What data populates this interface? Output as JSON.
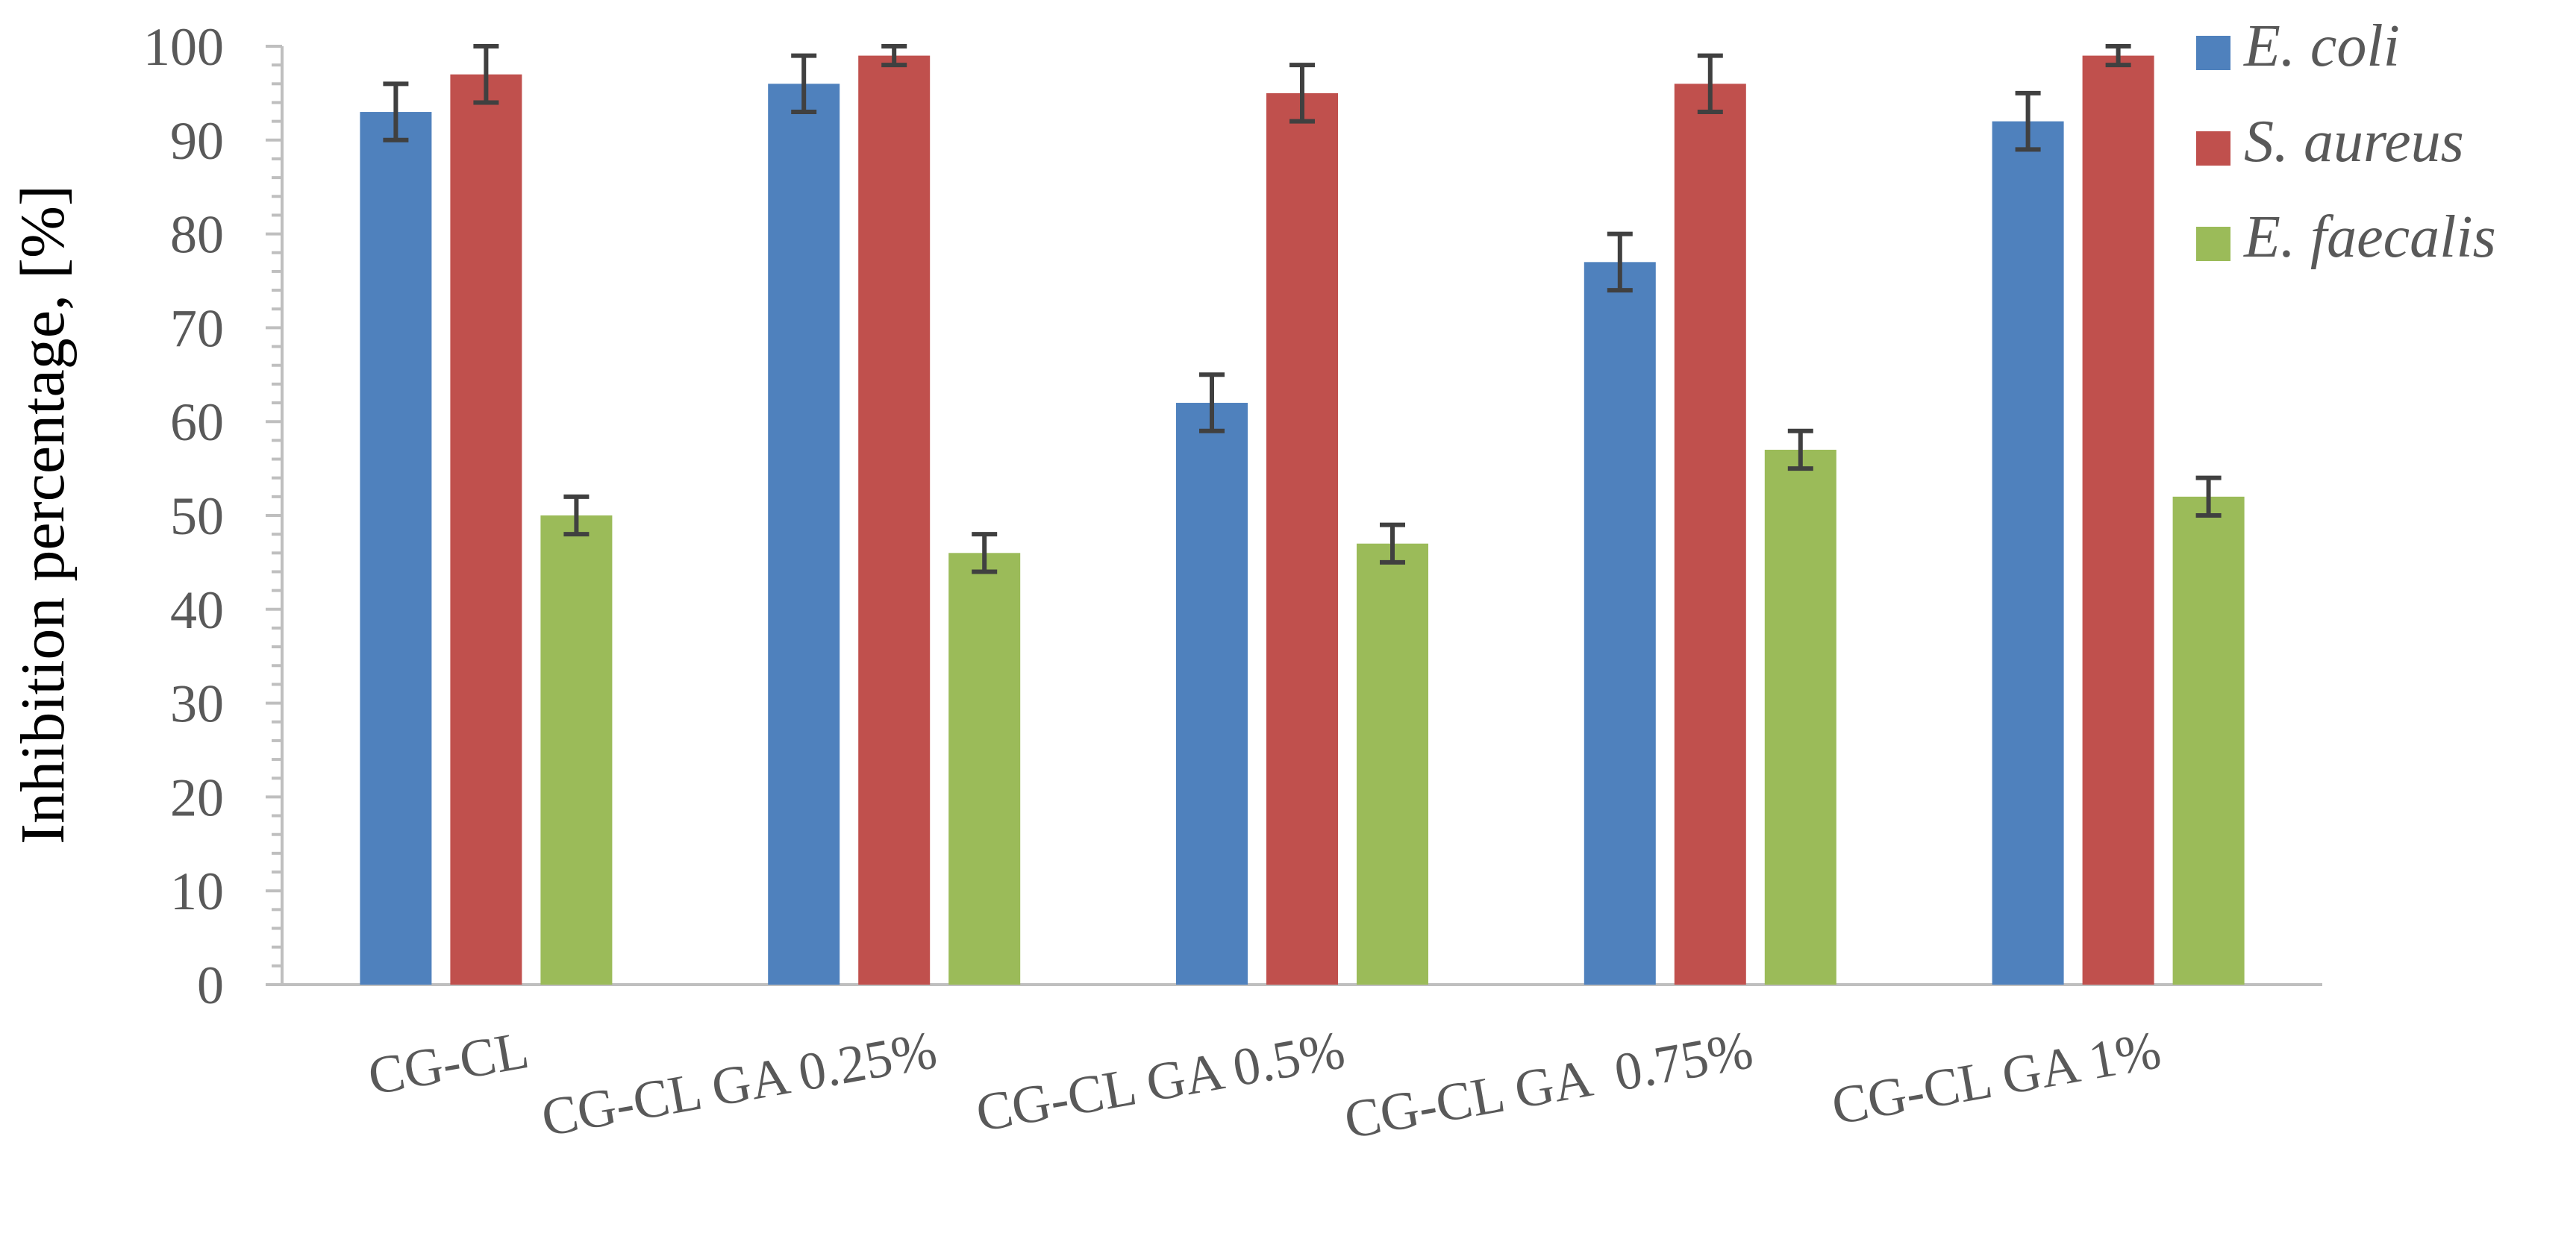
{
  "chart_data": {
    "type": "bar",
    "title": "",
    "xlabel": "",
    "ylabel": "Inhibition percentage, [%]",
    "ylim": [
      0,
      100
    ],
    "yticks": [
      "0",
      "10",
      "20",
      "30",
      "40",
      "50",
      "60",
      "70",
      "80",
      "90",
      "100"
    ],
    "grid": false,
    "legend_position": "top-right",
    "categories": [
      "CG-CL",
      "CG-CL GA 0.25%",
      "CG-CL GA 0.5%",
      "CG-CL GA  0.75%",
      "CG-CL GA 1%"
    ],
    "series": [
      {
        "name": "E. coli",
        "color": "#4F81BD",
        "values": [
          93,
          96,
          62,
          77,
          92
        ],
        "errors": [
          3,
          3,
          3,
          3,
          3
        ]
      },
      {
        "name": "S. aureus",
        "color": "#C0504D",
        "values": [
          97,
          99,
          95,
          96,
          99
        ],
        "errors": [
          3,
          1,
          3,
          3,
          1
        ]
      },
      {
        "name": "E. faecalis",
        "color": "#9BBB59",
        "values": [
          50,
          46,
          47,
          57,
          52
        ],
        "errors": [
          2,
          2,
          2,
          2,
          2
        ]
      }
    ]
  }
}
